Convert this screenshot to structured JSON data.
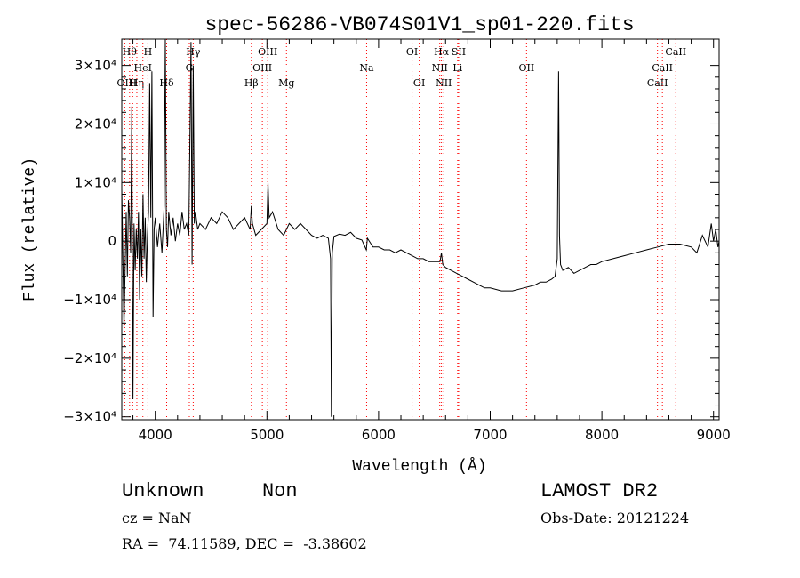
{
  "chart_data": {
    "type": "line",
    "title": "spec-56286-VB074S01V1_sp01-220.fits",
    "xlabel": "Wavelength (Å)",
    "ylabel": "Flux (relative)",
    "xlim": [
      3700,
      9050
    ],
    "ylim": [
      -30500,
      34500
    ],
    "xticks": [
      {
        "value": 4000,
        "label": "4000"
      },
      {
        "value": 5000,
        "label": "5000"
      },
      {
        "value": 6000,
        "label": "6000"
      },
      {
        "value": 7000,
        "label": "7000"
      },
      {
        "value": 8000,
        "label": "8000"
      },
      {
        "value": 9000,
        "label": "9000"
      }
    ],
    "yticks": [
      {
        "value": 30000,
        "label": "3×10⁴"
      },
      {
        "value": 20000,
        "label": "2×10⁴"
      },
      {
        "value": 10000,
        "label": "1×10⁴"
      },
      {
        "value": 0,
        "label": "0"
      },
      {
        "value": -10000,
        "label": "−1×10⁴"
      },
      {
        "value": -20000,
        "label": "−2×10⁴"
      },
      {
        "value": -30000,
        "label": "−3×10⁴"
      }
    ],
    "line_color": "#000000",
    "marker_color": "#ff0000",
    "series": [
      {
        "x": [
          3700,
          3720,
          3740,
          3750,
          3760,
          3770,
          3780,
          3790,
          3800,
          3810,
          3820,
          3830,
          3840,
          3850,
          3860,
          3870,
          3880,
          3890,
          3900,
          3910,
          3920,
          3930,
          3940,
          3950,
          3960,
          3970,
          3980,
          3990,
          4000,
          4020,
          4040,
          4060,
          4080,
          4090,
          4100,
          4110,
          4120,
          4140,
          4160,
          4180,
          4200,
          4220,
          4240,
          4260,
          4280,
          4300,
          4320,
          4330,
          4340,
          4350,
          4360,
          4380,
          4400,
          4450,
          4500,
          4550,
          4600,
          4650,
          4700,
          4750,
          4800,
          4850,
          4860,
          4870,
          4900,
          4950,
          5000,
          5010,
          5020,
          5050,
          5100,
          5150,
          5200,
          5250,
          5300,
          5350,
          5400,
          5450,
          5500,
          5550,
          5570,
          5577,
          5585,
          5600,
          5650,
          5700,
          5750,
          5800,
          5850,
          5890,
          5900,
          5950,
          6000,
          6050,
          6100,
          6150,
          6200,
          6250,
          6300,
          6350,
          6400,
          6450,
          6500,
          6550,
          6563,
          6575,
          6600,
          6650,
          6700,
          6750,
          6800,
          6850,
          6900,
          6950,
          7000,
          7100,
          7200,
          7300,
          7400,
          7450,
          7500,
          7550,
          7580,
          7600,
          7605,
          7612,
          7620,
          7630,
          7640,
          7650,
          7700,
          7750,
          7800,
          7850,
          7900,
          7950,
          8000,
          8100,
          8200,
          8300,
          8400,
          8500,
          8600,
          8700,
          8800,
          8850,
          8900,
          8950,
          8980,
          9000,
          9020,
          9040,
          9050
        ],
        "y": [
          9000,
          -15000,
          5000,
          -6000,
          7000,
          4000,
          -2000,
          23000,
          -27000,
          3000,
          -5000,
          2000,
          -3000,
          5000,
          -10000,
          2000,
          -6000,
          8000,
          -3000,
          4000,
          -7000,
          1000,
          5000,
          27000,
          4000,
          29000,
          -13000,
          2000,
          4000,
          -1000,
          3000,
          -2000,
          6000,
          34500,
          2000,
          -1000,
          5000,
          1000,
          4000,
          0,
          3000,
          1000,
          5000,
          2000,
          3000,
          1000,
          34000,
          -4000,
          30000,
          3000,
          5000,
          2000,
          3000,
          2000,
          4000,
          3000,
          5000,
          4000,
          2000,
          3000,
          4000,
          2000,
          6000,
          3000,
          1000,
          2000,
          3000,
          10000,
          4000,
          5000,
          2000,
          1000,
          3000,
          2000,
          3000,
          2000,
          1000,
          500,
          1000,
          500,
          -3000,
          -30000,
          -2000,
          800,
          1200,
          1000,
          1500,
          500,
          200,
          -1500,
          500,
          -1000,
          -1000,
          -1500,
          -1500,
          -2000,
          -1500,
          -2000,
          -2500,
          -3000,
          -3000,
          -3500,
          -3500,
          -3500,
          -2000,
          -4000,
          -4500,
          -5000,
          -5500,
          -6000,
          -6500,
          -7000,
          -7500,
          -8000,
          -8000,
          -8500,
          -8500,
          -8000,
          -7500,
          -7000,
          -7000,
          -6500,
          -6000,
          -3000,
          10000,
          29000,
          1000,
          -4000,
          -4500,
          -5000,
          -4500,
          -5500,
          -5000,
          -4500,
          -4000,
          -4000,
          -3500,
          -3000,
          -2500,
          -2000,
          -1500,
          -1000,
          -500,
          -500,
          -1000,
          -2000,
          1000,
          -1000,
          3000,
          0,
          2000,
          -1000,
          0
        ]
      }
    ],
    "line_markers": [
      {
        "wavelength": 3727,
        "label": "OII",
        "row": 3
      },
      {
        "wavelength": 3770,
        "label": "Hθ",
        "row": 1
      },
      {
        "wavelength": 3798,
        "label": "H",
        "row": 3
      },
      {
        "wavelength": 3835,
        "label": "Hη",
        "row": 3
      },
      {
        "wavelength": 3889,
        "label": "HeI",
        "row": 2
      },
      {
        "wavelength": 3934,
        "label": "H",
        "row": 1
      },
      {
        "wavelength": 4102,
        "label": "Hδ",
        "row": 3
      },
      {
        "wavelength": 4305,
        "label": "G",
        "row": 2
      },
      {
        "wavelength": 4340,
        "label": "Hγ",
        "row": 1
      },
      {
        "wavelength": 4861,
        "label": "Hβ",
        "row": 3
      },
      {
        "wavelength": 4959,
        "label": "OIII",
        "row": 2
      },
      {
        "wavelength": 5007,
        "label": "OIII",
        "row": 1
      },
      {
        "wavelength": 5175,
        "label": "Mg",
        "row": 3
      },
      {
        "wavelength": 5893,
        "label": "Na",
        "row": 2
      },
      {
        "wavelength": 6300,
        "label": "OI",
        "row": 1
      },
      {
        "wavelength": 6364,
        "label": "OI",
        "row": 3
      },
      {
        "wavelength": 6548,
        "label": "NII",
        "row": 2
      },
      {
        "wavelength": 6563,
        "label": "Hα",
        "row": 1
      },
      {
        "wavelength": 6584,
        "label": "NII",
        "row": 3
      },
      {
        "wavelength": 6708,
        "label": "Li",
        "row": 2
      },
      {
        "wavelength": 6717,
        "label": "SII",
        "row": 1
      },
      {
        "wavelength": 7325,
        "label": "OII",
        "row": 2
      },
      {
        "wavelength": 8498,
        "label": "CaII",
        "row": 3
      },
      {
        "wavelength": 8542,
        "label": "CaII",
        "row": 2
      },
      {
        "wavelength": 8662,
        "label": "CaII",
        "row": 1
      }
    ]
  },
  "info": {
    "object_class": "Unknown",
    "subclass": "Non",
    "survey": "LAMOST DR2",
    "redshift": "cz = NaN",
    "obs_date": "Obs-Date: 20121224",
    "coordinates": "RA =  74.11589, DEC =  -3.38602"
  }
}
